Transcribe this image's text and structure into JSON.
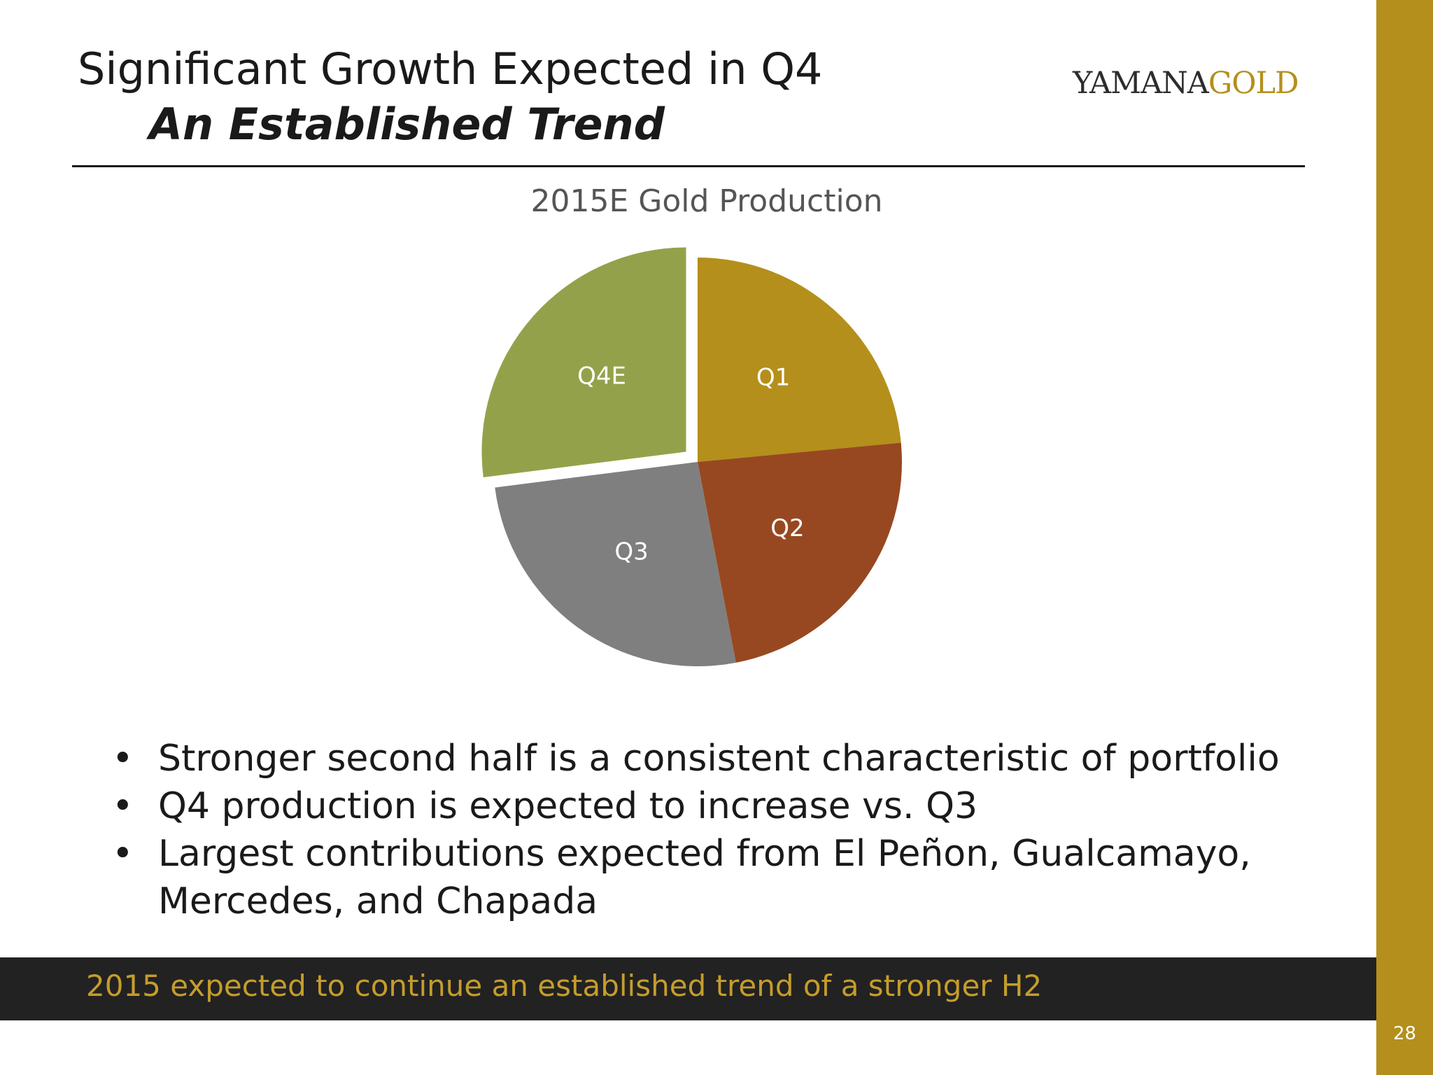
{
  "header": {
    "title": "Significant Growth Expected in Q4",
    "subtitle": "An Established Trend",
    "logo_part1": "YAMANA",
    "logo_part2": "GOLD"
  },
  "colors": {
    "accent": "#b48f1b",
    "banner_bg": "#222222",
    "banner_text": "#c59d2c"
  },
  "chart_data": {
    "type": "pie",
    "title": "2015E Gold Production",
    "slices": [
      {
        "label": "Q1",
        "value": 23.5,
        "color": "#b48f1b"
      },
      {
        "label": "Q2",
        "value": 23.5,
        "color": "#974820"
      },
      {
        "label": "Q3",
        "value": 26.0,
        "color": "#7f7f7f"
      },
      {
        "label": "Q4E",
        "value": 27.0,
        "color": "#93a24a",
        "exploded": true
      }
    ]
  },
  "bullets": [
    "Stronger second half is a consistent characteristic of portfolio",
    "Q4 production is expected to increase vs. Q3",
    "Largest contributions expected from El Peñon, Gualcamayo, Mercedes, and Chapada"
  ],
  "bullet_glyph": "•",
  "banner_text": "2015 expected to continue an established trend of a stronger H2",
  "page_number": "28"
}
